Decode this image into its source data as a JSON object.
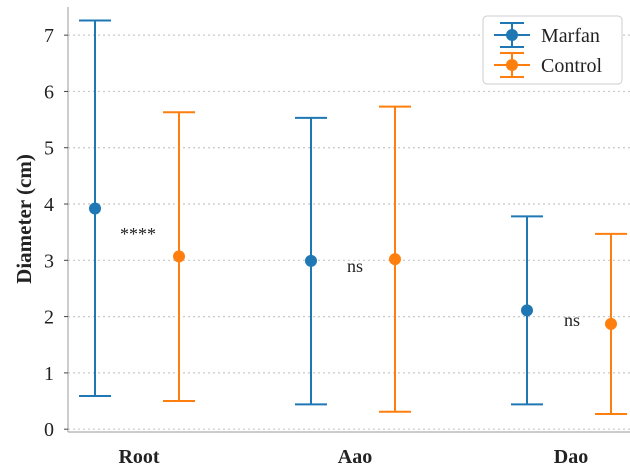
{
  "chart_data": {
    "type": "errorbar",
    "ylabel": "Diameter (cm)",
    "xlabel": "",
    "ylim": [
      -0.05,
      7.5
    ],
    "yticks": [
      0,
      1,
      2,
      3,
      4,
      5,
      6,
      7
    ],
    "grid": "horizontal dotted",
    "legend_position": "top-right",
    "categories": [
      "Root",
      "Aao",
      "Dao"
    ],
    "series": [
      {
        "name": "Marfan",
        "color": "#1f77b4",
        "mean": [
          3.92,
          2.99,
          2.11
        ],
        "lower": [
          0.59,
          0.44,
          0.44
        ],
        "upper": [
          7.26,
          5.53,
          3.78
        ]
      },
      {
        "name": "Control",
        "color": "#ff7f0e",
        "mean": [
          3.07,
          3.02,
          1.87
        ],
        "lower": [
          0.5,
          0.31,
          0.27
        ],
        "upper": [
          5.63,
          5.73,
          3.47
        ]
      }
    ],
    "annotations": [
      "****",
      "ns",
      "ns"
    ]
  }
}
